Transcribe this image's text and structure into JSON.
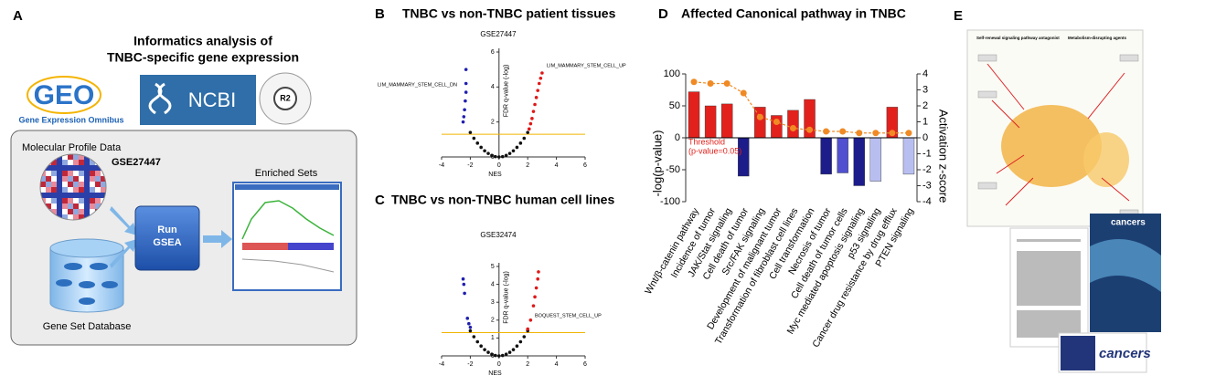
{
  "panels": {
    "a": {
      "label": "A",
      "title": [
        "Informatics analysis of",
        "TNBC-specific gene expression"
      ],
      "geo_logo": "GEO",
      "geo_caption": "Gene Expression Omnibus",
      "ncbi_logo": "NCBI",
      "r2_logo": "R2",
      "profile_label": "Molecular Profile Data",
      "dataset": "GSE27447",
      "enriched_label": "Enriched Sets",
      "run_button": [
        "Run",
        "GSEA"
      ],
      "database_label": "Gene Set Database"
    },
    "e": {
      "label": "E",
      "left_heading": "Self-renewal signaling pathway antagonist",
      "right_heading": "Metabolism-disrupting agents",
      "journal_titles": [
        "cancers",
        "cancers"
      ]
    }
  },
  "chart_data": [
    {
      "type": "scatter",
      "label": "B",
      "title": "TNBC vs non-TNBC patient tissues",
      "subtitle": "GSE27447",
      "x_label": "NES",
      "y_label": "FDR q-value (-log)",
      "xlim": [
        -4,
        6
      ],
      "ylim": [
        0,
        6
      ],
      "xticks": [
        -4,
        -2,
        0,
        2,
        4,
        6
      ],
      "yticks": [
        0,
        2,
        4,
        6
      ],
      "threshold": 1.3,
      "threshold_color": "#f0b400",
      "annotations": [
        "LIM_MAMMARY_STEM_CELL_DN",
        "LIM_MAMMARY_STEM_CELL_UP"
      ],
      "series": [
        {
          "color": "#1f1fb0",
          "x": [
            -2.5,
            -2.45,
            -2.4,
            -2.35,
            -2.3,
            -2.3,
            -2.3
          ],
          "values": [
            2.0,
            2.3,
            2.7,
            3.2,
            3.7,
            4.2,
            5.0
          ]
        },
        {
          "color": "#111111",
          "x": [
            -2,
            -1.75,
            -1.5,
            -1.25,
            -1,
            -0.75,
            -0.5,
            -0.25,
            0,
            0.25,
            0.5,
            0.75,
            1,
            1.25,
            1.5,
            1.75,
            2
          ],
          "values": [
            1.4,
            1.07,
            0.79,
            0.55,
            0.35,
            0.2,
            0.09,
            0.02,
            0,
            0.02,
            0.09,
            0.2,
            0.35,
            0.55,
            0.79,
            1.07,
            1.4
          ]
        },
        {
          "color": "#e01818",
          "x": [
            2.1,
            2.2,
            2.3,
            2.4,
            2.5,
            2.6,
            2.7,
            2.8,
            2.9,
            3.0
          ],
          "values": [
            1.6,
            1.9,
            2.2,
            2.6,
            3.0,
            3.4,
            3.8,
            4.2,
            4.5,
            4.8
          ]
        }
      ]
    },
    {
      "type": "scatter",
      "label": "C",
      "title": "TNBC vs non-TNBC human cell lines",
      "subtitle": "GSE32474",
      "x_label": "NES",
      "y_label": "FDR q-value (-log)",
      "xlim": [
        -4,
        6
      ],
      "ylim": [
        0,
        5
      ],
      "xticks": [
        -4,
        -2,
        0,
        2,
        4,
        6
      ],
      "yticks": [
        0,
        1,
        2,
        3,
        4,
        5
      ],
      "threshold": 1.3,
      "threshold_color": "#f0b400",
      "annotations": [
        "BOQUEST_STEM_CELL_UP"
      ],
      "series": [
        {
          "color": "#1f1fb0",
          "x": [
            -2.5,
            -2.45,
            -2.4,
            -2.2,
            -2.1,
            -2.0
          ],
          "values": [
            4.3,
            4.0,
            3.5,
            2.1,
            1.8,
            1.6
          ]
        },
        {
          "color": "#111111",
          "x": [
            -2,
            -1.75,
            -1.5,
            -1.25,
            -1,
            -0.75,
            -0.5,
            -0.25,
            0,
            0.25,
            0.5,
            0.75,
            1,
            1.25,
            1.5,
            1.75,
            2
          ],
          "values": [
            1.4,
            1.07,
            0.79,
            0.55,
            0.35,
            0.2,
            0.09,
            0.02,
            0,
            0.02,
            0.09,
            0.2,
            0.35,
            0.55,
            0.79,
            1.07,
            1.4
          ]
        },
        {
          "color": "#e01818",
          "x": [
            2.0,
            2.2,
            2.4,
            2.5,
            2.6,
            2.7,
            2.75
          ],
          "values": [
            1.5,
            2.0,
            2.8,
            3.3,
            3.8,
            4.3,
            4.7
          ]
        }
      ]
    },
    {
      "type": "bar",
      "label": "D",
      "title": "Affected Canonical pathway in TNBC",
      "y_label": "-log(p-value)",
      "y2_label": "Activation z-score",
      "annotation": [
        "Threshold",
        "(p-value=0.05)"
      ],
      "categories": [
        "Wnt/β-catenin pathway",
        "Incidence of tumor",
        "JAK/Stat signaling",
        "Cell death of tumor",
        "Src/FAK signaling",
        "Development of malignant tumor",
        "Transformation of fibroblast cell lines",
        "Cell transformation",
        "Necrosis of tumor",
        "Cell death of tumor cells",
        "Myc mediated apoptosis signaling",
        "p53 signaling",
        "Cancer drug resistance by drug efflux",
        "PTEN signaling"
      ],
      "ylim": [
        -100,
        100
      ],
      "yticks": [
        -100,
        -50,
        0,
        50,
        100
      ],
      "y2lim": [
        -4,
        4
      ],
      "y2ticks": [
        -4,
        -3,
        -2,
        -1,
        0,
        1,
        2,
        3,
        4
      ],
      "series": [
        {
          "values": [
            72,
            50,
            53,
            -60,
            48,
            35,
            43,
            60,
            -57,
            -55,
            -75,
            -68,
            48,
            -57
          ],
          "colors": [
            "#e3211c",
            "#e3211c",
            "#e3211c",
            "#1c1c8a",
            "#e3211c",
            "#e3211c",
            "#e3211c",
            "#e3211c",
            "#1c1c8a",
            "#5050d0",
            "#1c1c8a",
            "#b8bff0",
            "#e3211c",
            "#b8bff0"
          ]
        },
        {
          "type": "line",
          "axis": "y2",
          "color": "#f08a24",
          "values": [
            3.5,
            3.4,
            3.4,
            2.8,
            1.3,
            1.0,
            0.6,
            0.5,
            0.4,
            0.4,
            0.3,
            0.3,
            0.3,
            0.3
          ]
        }
      ]
    }
  ]
}
